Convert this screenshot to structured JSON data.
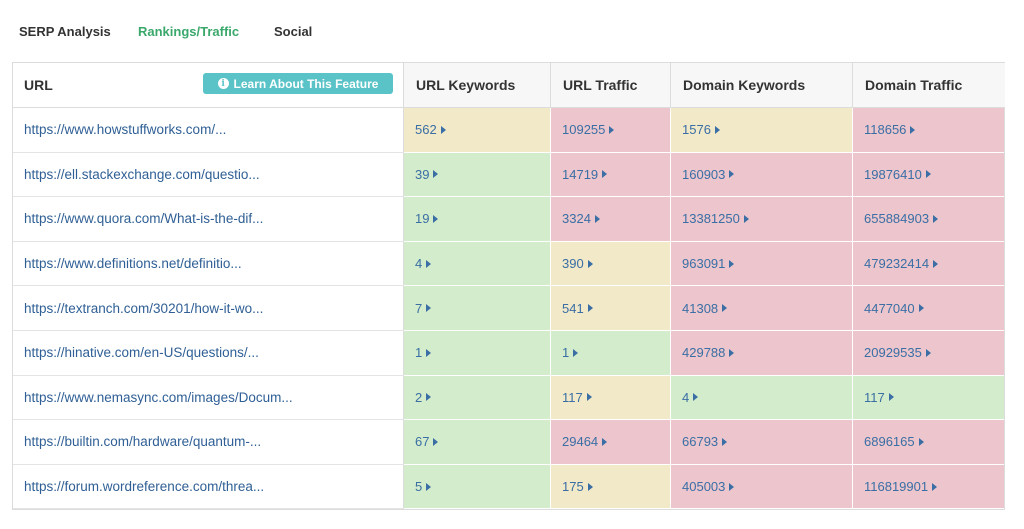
{
  "tabs": [
    {
      "label": "SERP Analysis",
      "active": false
    },
    {
      "label": "Rankings/Traffic",
      "active": true
    },
    {
      "label": "Social",
      "active": false
    }
  ],
  "colors": {
    "accent_green": "#3aa86b",
    "button_teal": "#59c3c8",
    "cell_green": "#d3eccb",
    "cell_yellow": "#f1e9c8",
    "cell_red": "#ecc6cc",
    "link_blue": "#2f5f95"
  },
  "table": {
    "headers": {
      "url": "URL",
      "learn_button": "Learn About This Feature",
      "url_keywords": "URL Keywords",
      "url_traffic": "URL Traffic",
      "domain_keywords": "Domain Keywords",
      "domain_traffic": "Domain Traffic"
    },
    "rows": [
      {
        "url": "https://www.howstuffworks.com/...",
        "url_keywords": "562",
        "url_traffic": "109255",
        "domain_keywords": "1576",
        "domain_traffic": "118656"
      },
      {
        "url": "https://ell.stackexchange.com/questio...",
        "url_keywords": "39",
        "url_traffic": "14719",
        "domain_keywords": "160903",
        "domain_traffic": "19876410"
      },
      {
        "url": "https://www.quora.com/What-is-the-dif...",
        "url_keywords": "19",
        "url_traffic": "3324",
        "domain_keywords": "13381250",
        "domain_traffic": "655884903"
      },
      {
        "url": "https://www.definitions.net/definitio...",
        "url_keywords": "4",
        "url_traffic": "390",
        "domain_keywords": "963091",
        "domain_traffic": "479232414"
      },
      {
        "url": "https://textranch.com/30201/how-it-wo...",
        "url_keywords": "7",
        "url_traffic": "541",
        "domain_keywords": "41308",
        "domain_traffic": "4477040"
      },
      {
        "url": "https://hinative.com/en-US/questions/...",
        "url_keywords": "1",
        "url_traffic": "1",
        "domain_keywords": "429788",
        "domain_traffic": "20929535"
      },
      {
        "url": "https://www.nemasync.com/images/Docum...",
        "url_keywords": "2",
        "url_traffic": "117",
        "domain_keywords": "4",
        "domain_traffic": "117"
      },
      {
        "url": "https://builtin.com/hardware/quantum-...",
        "url_keywords": "67",
        "url_traffic": "29464",
        "domain_keywords": "66793",
        "domain_traffic": "6896165"
      },
      {
        "url": "https://forum.wordreference.com/threa...",
        "url_keywords": "5",
        "url_traffic": "175",
        "domain_keywords": "405003",
        "domain_traffic": "116819901"
      }
    ],
    "cell_colors": [
      [
        "yellow",
        "red",
        "yellow",
        "red"
      ],
      [
        "green",
        "red",
        "red",
        "red"
      ],
      [
        "green",
        "red",
        "red",
        "red"
      ],
      [
        "green",
        "yellow",
        "red",
        "red"
      ],
      [
        "green",
        "yellow",
        "red",
        "red"
      ],
      [
        "green",
        "green",
        "red",
        "red"
      ],
      [
        "green",
        "yellow",
        "green",
        "green"
      ],
      [
        "green",
        "red",
        "red",
        "red"
      ],
      [
        "green",
        "yellow",
        "red",
        "red"
      ]
    ]
  }
}
